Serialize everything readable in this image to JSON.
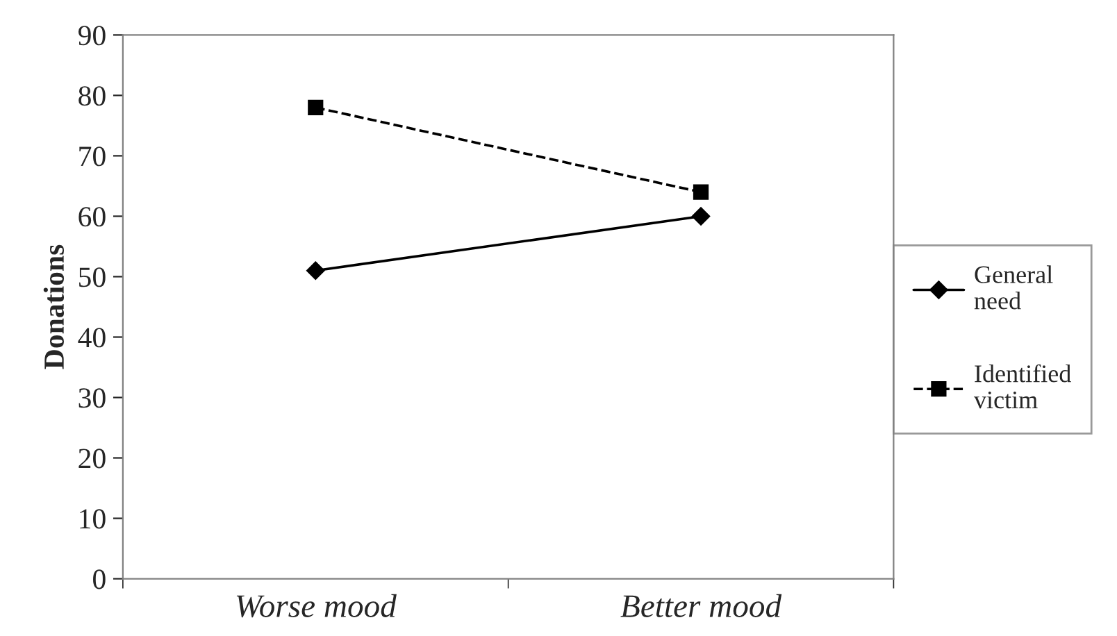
{
  "chart_data": {
    "type": "line",
    "ylabel": "Donations",
    "categories": [
      "Worse mood",
      "Better mood"
    ],
    "series": [
      {
        "name": "General\nneed",
        "color": "#000000",
        "values": [
          51,
          60
        ],
        "marker": "diamond",
        "line_style": "solid"
      },
      {
        "name": "Identified\nvictim",
        "color": "#000000",
        "values": [
          78,
          64
        ],
        "marker": "square",
        "line_style": "dashed"
      }
    ],
    "ylim": [
      0,
      90
    ],
    "yticks": [
      0,
      10,
      20,
      30,
      40,
      50,
      60,
      70,
      80,
      90
    ],
    "grid": false,
    "legend": "right"
  }
}
